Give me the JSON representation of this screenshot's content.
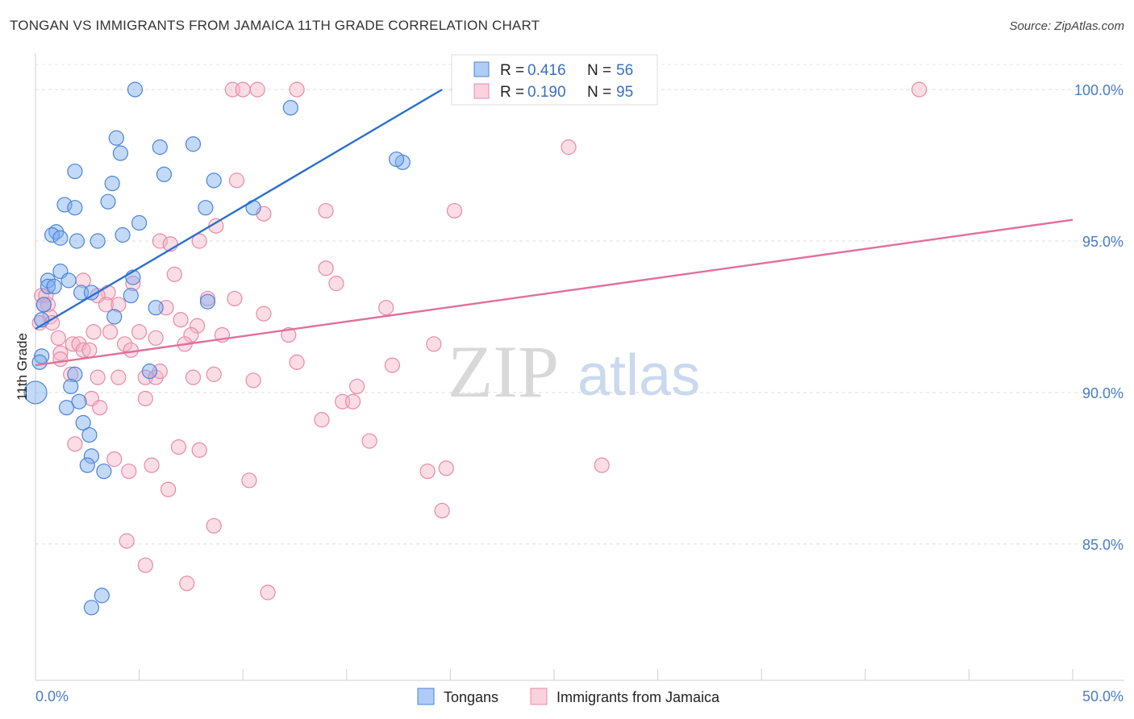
{
  "title": "TONGAN VS IMMIGRANTS FROM JAMAICA 11TH GRADE CORRELATION CHART",
  "source": "Source: ZipAtlas.com",
  "watermark": {
    "part1": "ZIP",
    "part2": "atlas"
  },
  "chart_data": {
    "type": "scatter",
    "ylabel": "11th Grade",
    "xlim": [
      0,
      50
    ],
    "ylim": [
      80.5,
      101.2
    ],
    "x_tick_labels": [
      {
        "value": 0,
        "label": "0.0%"
      },
      {
        "value": 50,
        "label": "50.0%"
      }
    ],
    "y_tick_labels": [
      {
        "value": 100,
        "label": "100.0%"
      },
      {
        "value": 95,
        "label": "95.0%"
      },
      {
        "value": 90,
        "label": "90.0%"
      },
      {
        "value": 85,
        "label": "85.0%"
      }
    ],
    "grid": "horizontal-dashed",
    "legend_position": "top-center",
    "series": [
      {
        "name": "Tongans",
        "color": "#7aaaf0",
        "stroke": "#4c84d4",
        "line_color": "#2a6fd0",
        "stats": {
          "r_label": "R =",
          "r_value": "0.416",
          "n_label": "N =",
          "n_value": "56"
        },
        "trendline": {
          "x": [
            0,
            19.6
          ],
          "y": [
            92.1,
            100.0
          ]
        },
        "points": [
          [
            4.8,
            100.0
          ],
          [
            12.3,
            99.4
          ],
          [
            3.9,
            98.4
          ],
          [
            6.0,
            98.1
          ],
          [
            7.6,
            98.2
          ],
          [
            4.1,
            97.9
          ],
          [
            1.9,
            97.3
          ],
          [
            6.2,
            97.2
          ],
          [
            8.6,
            97.0
          ],
          [
            17.7,
            97.6
          ],
          [
            17.4,
            97.7
          ],
          [
            3.7,
            96.9
          ],
          [
            3.5,
            96.3
          ],
          [
            1.4,
            96.2
          ],
          [
            1.9,
            96.1
          ],
          [
            8.2,
            96.1
          ],
          [
            10.5,
            96.1
          ],
          [
            5.0,
            95.6
          ],
          [
            4.2,
            95.2
          ],
          [
            1.0,
            95.3
          ],
          [
            0.8,
            95.2
          ],
          [
            1.2,
            95.1
          ],
          [
            2.0,
            95.0
          ],
          [
            3.0,
            95.0
          ],
          [
            1.2,
            94.0
          ],
          [
            0.6,
            93.7
          ],
          [
            1.6,
            93.7
          ],
          [
            0.6,
            93.5
          ],
          [
            0.9,
            93.5
          ],
          [
            2.2,
            93.3
          ],
          [
            2.7,
            93.3
          ],
          [
            4.7,
            93.8
          ],
          [
            4.6,
            93.2
          ],
          [
            0.4,
            92.9
          ],
          [
            5.8,
            92.8
          ],
          [
            8.3,
            93.0
          ],
          [
            3.8,
            92.5
          ],
          [
            0.3,
            92.4
          ],
          [
            0.3,
            91.2
          ],
          [
            0.2,
            91.0
          ],
          [
            1.9,
            90.6
          ],
          [
            5.5,
            90.7
          ],
          [
            1.7,
            90.2
          ],
          [
            0.0,
            90.0
          ],
          [
            2.1,
            89.7
          ],
          [
            1.5,
            89.5
          ],
          [
            2.3,
            89.0
          ],
          [
            2.6,
            88.6
          ],
          [
            2.7,
            87.9
          ],
          [
            2.5,
            87.6
          ],
          [
            3.3,
            87.4
          ],
          [
            3.2,
            83.3
          ],
          [
            2.7,
            82.9
          ]
        ]
      },
      {
        "name": "Immigrants from Jamaica",
        "color": "#f7b4c8",
        "stroke": "#e88aa8",
        "line_color": "#e0709a",
        "stats": {
          "r_label": "R =",
          "r_value": "0.190",
          "n_label": "N =",
          "n_value": "95"
        },
        "trendline": {
          "x": [
            0,
            50
          ],
          "y": [
            90.9,
            95.7
          ]
        },
        "points": [
          [
            9.5,
            100.0
          ],
          [
            10.0,
            100.0
          ],
          [
            10.7,
            100.0
          ],
          [
            12.6,
            100.0
          ],
          [
            20.4,
            100.0
          ],
          [
            42.6,
            100.0
          ],
          [
            25.7,
            98.1
          ],
          [
            9.7,
            97.0
          ],
          [
            14.0,
            96.0
          ],
          [
            20.2,
            96.0
          ],
          [
            11.0,
            95.9
          ],
          [
            8.7,
            95.5
          ],
          [
            6.0,
            95.0
          ],
          [
            6.5,
            94.9
          ],
          [
            7.9,
            95.0
          ],
          [
            14.0,
            94.1
          ],
          [
            6.7,
            93.9
          ],
          [
            2.3,
            93.7
          ],
          [
            4.7,
            93.6
          ],
          [
            14.5,
            93.6
          ],
          [
            0.3,
            93.2
          ],
          [
            0.5,
            93.2
          ],
          [
            3.5,
            93.3
          ],
          [
            3.0,
            93.2
          ],
          [
            0.6,
            92.9
          ],
          [
            0.4,
            92.9
          ],
          [
            3.4,
            92.9
          ],
          [
            4.0,
            92.9
          ],
          [
            8.3,
            93.1
          ],
          [
            9.6,
            93.1
          ],
          [
            6.3,
            92.8
          ],
          [
            11.0,
            92.6
          ],
          [
            16.9,
            92.8
          ],
          [
            0.7,
            92.5
          ],
          [
            0.2,
            92.3
          ],
          [
            0.8,
            92.3
          ],
          [
            7.0,
            92.4
          ],
          [
            7.8,
            92.2
          ],
          [
            2.8,
            92.0
          ],
          [
            3.6,
            92.0
          ],
          [
            5.0,
            92.0
          ],
          [
            7.5,
            91.9
          ],
          [
            9.0,
            91.9
          ],
          [
            12.2,
            91.9
          ],
          [
            1.1,
            91.8
          ],
          [
            1.8,
            91.6
          ],
          [
            2.1,
            91.6
          ],
          [
            4.3,
            91.6
          ],
          [
            5.8,
            91.8
          ],
          [
            7.2,
            91.6
          ],
          [
            19.2,
            91.6
          ],
          [
            1.2,
            91.3
          ],
          [
            2.3,
            91.4
          ],
          [
            2.6,
            91.4
          ],
          [
            4.6,
            91.4
          ],
          [
            1.2,
            91.1
          ],
          [
            12.6,
            91.0
          ],
          [
            17.2,
            90.9
          ],
          [
            1.7,
            90.6
          ],
          [
            4.0,
            90.5
          ],
          [
            5.3,
            90.5
          ],
          [
            5.8,
            90.5
          ],
          [
            6.0,
            90.7
          ],
          [
            7.6,
            90.5
          ],
          [
            8.6,
            90.6
          ],
          [
            10.5,
            90.4
          ],
          [
            3.0,
            90.5
          ],
          [
            15.5,
            90.2
          ],
          [
            5.3,
            89.8
          ],
          [
            2.7,
            89.8
          ],
          [
            14.8,
            89.7
          ],
          [
            15.3,
            89.7
          ],
          [
            3.1,
            89.5
          ],
          [
            13.8,
            89.1
          ],
          [
            1.9,
            88.3
          ],
          [
            6.9,
            88.2
          ],
          [
            7.9,
            88.1
          ],
          [
            16.1,
            88.4
          ],
          [
            3.8,
            87.8
          ],
          [
            5.6,
            87.6
          ],
          [
            4.5,
            87.4
          ],
          [
            18.9,
            87.4
          ],
          [
            19.8,
            87.5
          ],
          [
            27.3,
            87.6
          ],
          [
            10.3,
            87.1
          ],
          [
            6.4,
            86.8
          ],
          [
            19.6,
            86.1
          ],
          [
            8.6,
            85.6
          ],
          [
            4.4,
            85.1
          ],
          [
            5.3,
            84.3
          ],
          [
            7.3,
            83.7
          ],
          [
            11.2,
            83.4
          ]
        ]
      }
    ]
  }
}
